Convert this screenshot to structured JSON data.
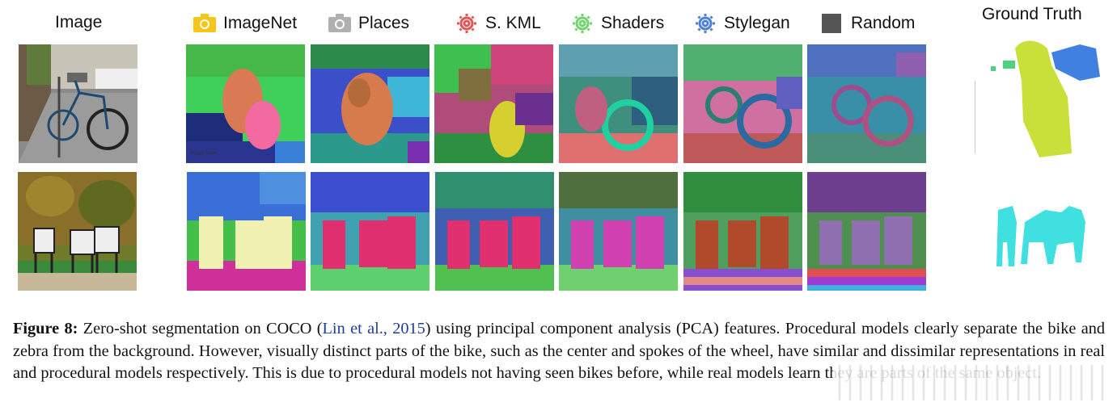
{
  "figure": {
    "image_column_title": "Image",
    "ground_truth_title": "Ground Truth",
    "legend": [
      {
        "label": "ImageNet",
        "icon": "camera-icon",
        "color": "#f5c518"
      },
      {
        "label": "Places",
        "icon": "camera-icon",
        "color": "#b0b0b0"
      },
      {
        "label": "S. KML",
        "icon": "gear-icon",
        "color": "#e25555"
      },
      {
        "label": "Shaders",
        "icon": "gear-icon",
        "color": "#6fd36f"
      },
      {
        "label": "Stylegan",
        "icon": "gear-icon",
        "color": "#4d7fd6"
      },
      {
        "label": "Random",
        "icon": "square-icon",
        "color": "#555555"
      }
    ],
    "rows": [
      "bike",
      "zebras"
    ],
    "tile_overlay_text": "Image Scale"
  },
  "caption": {
    "label": "Figure 8:",
    "text_before_cite": " Zero-shot segmentation on COCO (",
    "citation": "Lin et al., 2015",
    "text_after_cite": ") using principal component analysis (PCA) features. Procedural models clearly separate the bike and zebra from the background. However, visually distinct parts of the bike, such as the center and spokes of the wheel, have similar and dissimilar representations in real and procedural models respectively. This is due to procedural models not having seen bikes before, while real models learn they are parts of the same object."
  }
}
